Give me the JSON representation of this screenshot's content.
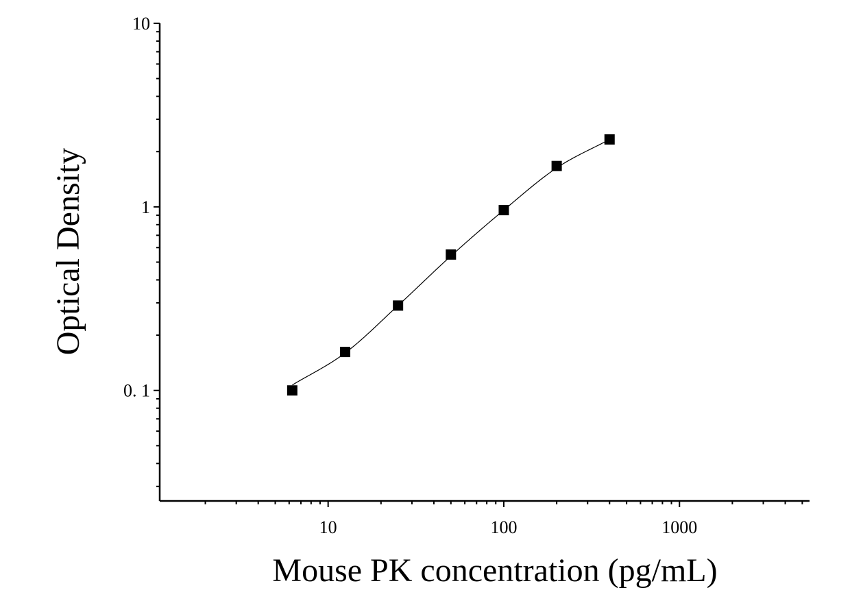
{
  "chart_data": {
    "type": "scatter",
    "title": "",
    "xlabel": "Mouse PK concentration (pg/mL)",
    "ylabel": "Optical Density",
    "xscale": "log",
    "yscale": "log",
    "xlim": [
      1.1,
      5500
    ],
    "ylim": [
      0.025,
      10
    ],
    "xticks": [
      10,
      100,
      1000
    ],
    "xtick_labels": [
      "10",
      "100",
      "1000"
    ],
    "yticks": [
      0.1,
      1,
      10
    ],
    "ytick_labels": [
      "0. 1",
      "1",
      "10"
    ],
    "grid": false,
    "legend": "none",
    "series": [
      {
        "marker": "square",
        "color": "#000000",
        "points": [
          {
            "x": 6.25,
            "y": 0.1
          },
          {
            "x": 12.5,
            "y": 0.162
          },
          {
            "x": 25,
            "y": 0.29
          },
          {
            "x": 50,
            "y": 0.55
          },
          {
            "x": 100,
            "y": 0.96
          },
          {
            "x": 200,
            "y": 1.67
          },
          {
            "x": 400,
            "y": 2.33
          }
        ]
      }
    ],
    "fit_curve": {
      "color": "#000000",
      "points": [
        {
          "x": 6.25,
          "y": 0.107
        },
        {
          "x": 12.5,
          "y": 0.16
        },
        {
          "x": 25,
          "y": 0.29
        },
        {
          "x": 50,
          "y": 0.54
        },
        {
          "x": 100,
          "y": 0.96
        },
        {
          "x": 200,
          "y": 1.63
        },
        {
          "x": 400,
          "y": 2.33
        }
      ]
    }
  }
}
